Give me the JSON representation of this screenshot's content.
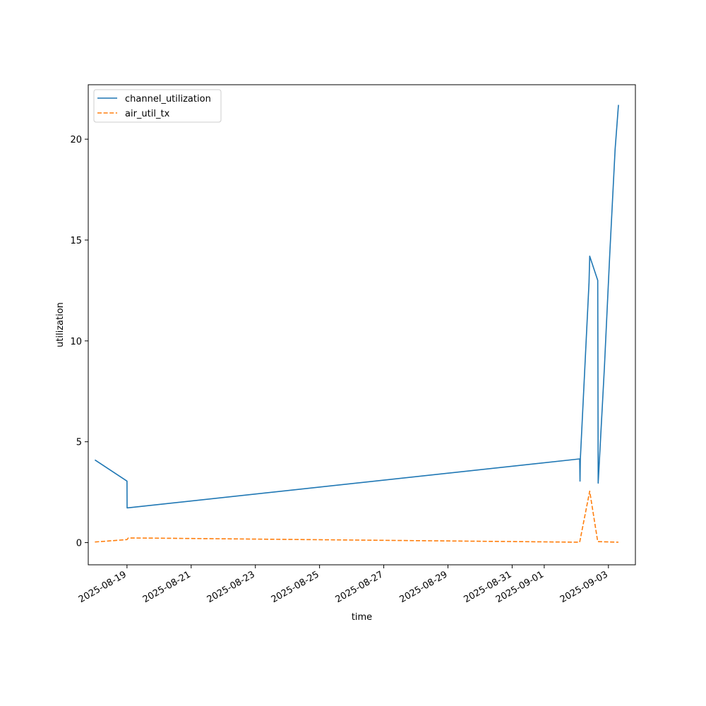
{
  "chart_data": {
    "type": "line",
    "xlabel": "time",
    "ylabel": "utilization",
    "xlim": [
      "2025-08-17T19:02",
      "2025-09-03T20:10"
    ],
    "ylim": [
      -1.1,
      22.7
    ],
    "grid": false,
    "legend_position": "top-left",
    "x_ticks": [
      "2025-08-19",
      "2025-08-21",
      "2025-08-23",
      "2025-08-25",
      "2025-08-27",
      "2025-08-29",
      "2025-08-31",
      "2025-09-01",
      "2025-09-03"
    ],
    "y_ticks": [
      0,
      5,
      10,
      15,
      20
    ],
    "series": [
      {
        "name": "channel_utilization",
        "color": "#1f77b4",
        "style": "solid",
        "points": [
          [
            "2025-08-18T00:00",
            4.1
          ],
          [
            "2025-08-19T00:00",
            3.05
          ],
          [
            "2025-08-19T00:05",
            1.72
          ],
          [
            "2025-09-02T02:30",
            4.15
          ],
          [
            "2025-09-02T02:45",
            3.05
          ],
          [
            "2025-09-02T03:00",
            4.15
          ],
          [
            "2025-09-02T09:30",
            12.9
          ],
          [
            "2025-09-02T10:00",
            14.2
          ],
          [
            "2025-09-02T16:00",
            13.0
          ],
          [
            "2025-09-02T16:20",
            2.95
          ],
          [
            "2025-09-02T21:00",
            8.7
          ],
          [
            "2025-09-03T01:00",
            14.3
          ],
          [
            "2025-09-03T05:00",
            19.5
          ],
          [
            "2025-09-03T07:30",
            21.7
          ]
        ]
      },
      {
        "name": "air_util_tx",
        "color": "#ff7f0e",
        "style": "dashed",
        "points": [
          [
            "2025-08-18T00:00",
            0.03
          ],
          [
            "2025-08-19T00:00",
            0.15
          ],
          [
            "2025-08-19T01:00",
            0.23
          ],
          [
            "2025-08-20T00:00",
            0.22
          ],
          [
            "2025-09-02T02:30",
            0.02
          ],
          [
            "2025-09-02T10:00",
            2.55
          ],
          [
            "2025-09-02T16:00",
            0.05
          ],
          [
            "2025-09-03T07:30",
            0.02
          ]
        ]
      }
    ]
  }
}
